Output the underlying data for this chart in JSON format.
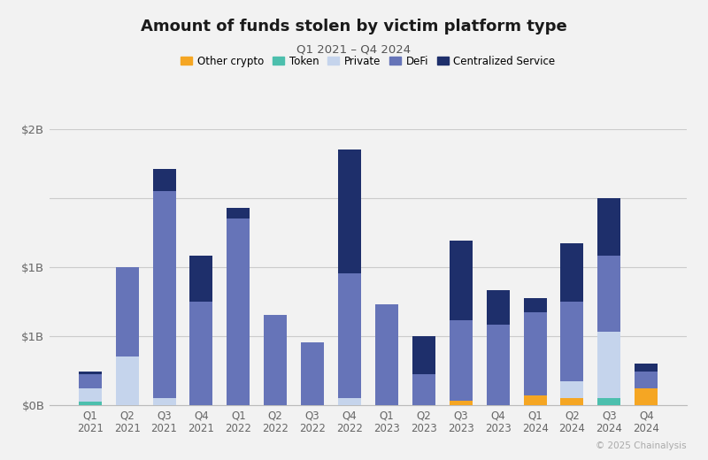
{
  "title": "Amount of funds stolen by victim platform type",
  "subtitle": "Q1 2021 – Q4 2024",
  "categories": [
    "Q1\n2021",
    "Q2\n2021",
    "Q3\n2021",
    "Q4\n2021",
    "Q1\n2022",
    "Q2\n2022",
    "Q3\n2022",
    "Q4\n2022",
    "Q1\n2023",
    "Q2\n2023",
    "Q3\n2023",
    "Q4\n2023",
    "Q1\n2024",
    "Q2\n2024",
    "Q3\n2024",
    "Q4\n2024"
  ],
  "series": {
    "Other crypto": [
      0,
      0,
      0,
      0,
      0,
      0,
      0,
      0,
      0,
      0,
      0.03,
      0,
      0.07,
      0.05,
      0,
      0.12
    ],
    "Token": [
      0.02,
      0,
      0,
      0,
      0,
      0,
      0,
      0,
      0,
      0,
      0,
      0,
      0,
      0,
      0.05,
      0
    ],
    "Private": [
      0.1,
      0.35,
      0.05,
      0,
      0,
      0,
      0,
      0.05,
      0,
      0,
      0,
      0,
      0,
      0.12,
      0.48,
      0
    ],
    "DeFi": [
      0.1,
      0.65,
      1.5,
      0.75,
      1.35,
      0.65,
      0.45,
      0.9,
      0.73,
      0.22,
      0.58,
      0.58,
      0.6,
      0.58,
      0.55,
      0.12
    ],
    "Centralized Service": [
      0.02,
      0,
      0.16,
      0.33,
      0.08,
      0,
      0,
      0.9,
      0,
      0.28,
      0.58,
      0.25,
      0.1,
      0.42,
      0.42,
      0.06
    ]
  },
  "colors": {
    "Other crypto": "#F5A623",
    "Token": "#4CBFAD",
    "Private": "#C5D4EC",
    "DeFi": "#6674B8",
    "Centralized Service": "#1E2F6B"
  },
  "ylim": [
    0,
    2.0
  ],
  "ytick_positions": [
    0,
    0.5,
    1.0,
    2.0
  ],
  "ytick_labels": [
    "$0B",
    "$1B",
    "$1B",
    "$2B"
  ],
  "background_color": "#F2F2F2",
  "copyright": "© 2025 Chainalysis"
}
